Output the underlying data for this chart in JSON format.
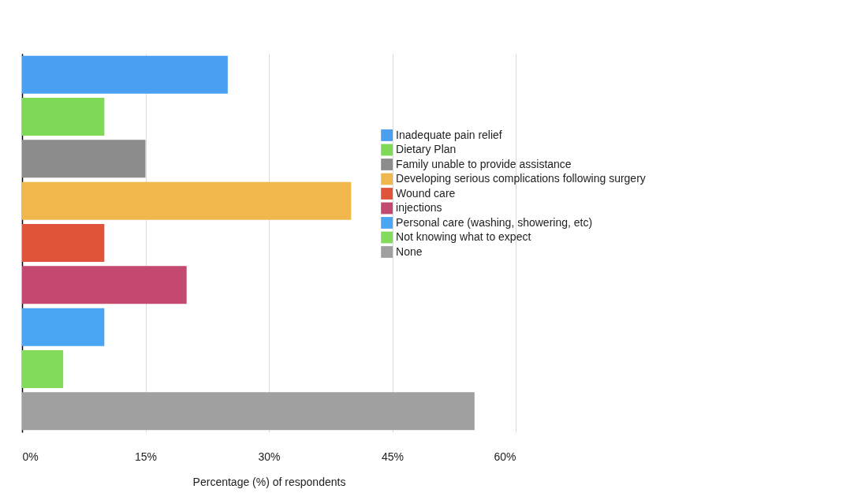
{
  "chart_data": {
    "type": "bar",
    "orientation": "horizontal",
    "xlabel": "Percentage (%) of respondents",
    "categories": [
      null,
      null,
      null,
      null,
      null,
      null,
      null,
      null,
      null
    ],
    "series": [
      {
        "name": "Inadequate pain relief",
        "color": "#4a9ff0",
        "values": [
          25,
          null,
          null,
          null,
          null,
          null,
          null,
          null,
          null
        ]
      },
      {
        "name": "Dietary Plan",
        "color": "#7ed957",
        "values": [
          null,
          10,
          null,
          null,
          null,
          null,
          null,
          null,
          null
        ]
      },
      {
        "name": "Family unable to provide assistance",
        "color": "#8c8c8c",
        "values": [
          null,
          null,
          15,
          null,
          null,
          null,
          null,
          null,
          null
        ]
      },
      {
        "name": "Developing serious complications following surgery",
        "color": "#f0b84c",
        "values": [
          null,
          null,
          null,
          40,
          null,
          null,
          null,
          null,
          null
        ]
      },
      {
        "name": "Wound care",
        "color": "#e0553a",
        "values": [
          null,
          null,
          null,
          null,
          10,
          null,
          null,
          null,
          null
        ]
      },
      {
        "name": "injections",
        "color": "#c4496e",
        "values": [
          null,
          null,
          null,
          null,
          null,
          20,
          null,
          null,
          null
        ]
      },
      {
        "name": "Personal care (washing, showering, etc)",
        "color": "#4aa6f2",
        "values": [
          null,
          null,
          null,
          null,
          null,
          null,
          10,
          null,
          null
        ]
      },
      {
        "name": "Not knowing what to expect",
        "color": "#82db5a",
        "values": [
          null,
          null,
          null,
          null,
          null,
          null,
          null,
          5,
          null
        ]
      },
      {
        "name": "None",
        "color": "#a0a0a0",
        "values": [
          null,
          null,
          null,
          null,
          null,
          null,
          null,
          null,
          55
        ]
      }
    ],
    "xlim": [
      0,
      60
    ],
    "xticks": [
      {
        "value": 0,
        "label": "0%"
      },
      {
        "value": 15,
        "label": "15%"
      },
      {
        "value": 30,
        "label": "30%"
      },
      {
        "value": 45,
        "label": "45%"
      },
      {
        "value": 60,
        "label": "60%"
      }
    ],
    "grid": "x",
    "legend": "right",
    "tick_labels": "x"
  }
}
